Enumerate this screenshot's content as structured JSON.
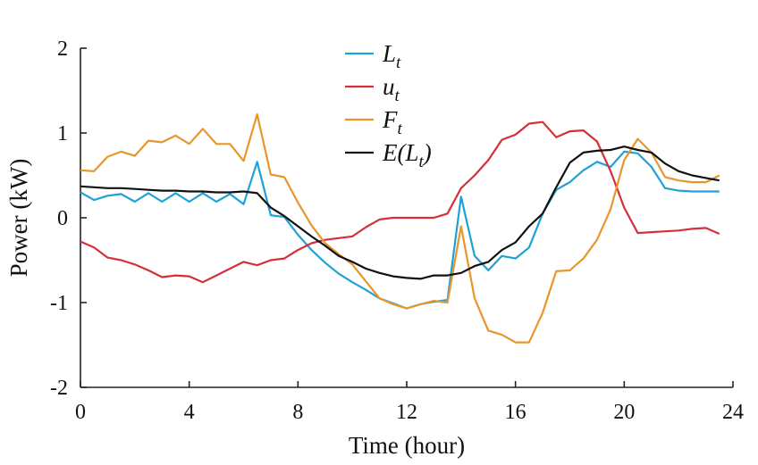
{
  "chart_data": {
    "type": "line",
    "xlabel": "Time (hour)",
    "ylabel": "Power (kW)",
    "xlim": [
      0,
      24
    ],
    "ylim": [
      -2,
      2
    ],
    "xticks": [
      0,
      4,
      8,
      12,
      16,
      20,
      24
    ],
    "yticks": [
      -2,
      -1,
      0,
      1,
      2
    ],
    "grid": false,
    "legend_position": "top-center",
    "series": [
      {
        "name": "L_t",
        "label_main": "L",
        "label_sub": "t",
        "color": "#1ea2d6",
        "x": [
          0,
          0.5,
          1,
          1.5,
          2,
          2.5,
          3,
          3.5,
          4,
          4.5,
          5,
          5.5,
          6,
          6.5,
          7,
          7.5,
          8,
          8.5,
          9,
          9.5,
          10,
          10.5,
          11,
          11.5,
          12,
          12.5,
          13,
          13.5,
          14,
          14.5,
          15,
          15.5,
          16,
          16.5,
          17,
          17.5,
          18,
          18.5,
          19,
          19.5,
          20,
          20.5,
          21,
          21.5,
          22,
          22.5,
          23,
          23.5
        ],
        "y": [
          0.3,
          0.21,
          0.26,
          0.28,
          0.19,
          0.29,
          0.19,
          0.29,
          0.19,
          0.29,
          0.19,
          0.28,
          0.16,
          0.66,
          0.03,
          0.01,
          -0.2,
          -0.38,
          -0.53,
          -0.66,
          -0.76,
          -0.85,
          -0.95,
          -1.01,
          -1.07,
          -1.02,
          -0.99,
          -0.97,
          0.25,
          -0.45,
          -0.62,
          -0.45,
          -0.48,
          -0.35,
          0.05,
          0.33,
          0.42,
          0.56,
          0.66,
          0.6,
          0.78,
          0.76,
          0.6,
          0.35,
          0.32,
          0.31,
          0.31,
          0.31
        ]
      },
      {
        "name": "u_t",
        "label_main": "u",
        "label_sub": "t",
        "color": "#d62f3c",
        "x": [
          0,
          0.5,
          1,
          1.5,
          2,
          2.5,
          3,
          3.5,
          4,
          4.5,
          5,
          5.5,
          6,
          6.5,
          7,
          7.5,
          8,
          8.5,
          9,
          9.5,
          10,
          10.5,
          11,
          11.5,
          12,
          12.5,
          13,
          13.5,
          14,
          14.5,
          15,
          15.5,
          16,
          16.5,
          17,
          17.5,
          18,
          18.5,
          19,
          19.5,
          20,
          20.5,
          21,
          21.5,
          22,
          22.5,
          23,
          23.5
        ],
        "y": [
          -0.28,
          -0.35,
          -0.47,
          -0.5,
          -0.55,
          -0.62,
          -0.7,
          -0.68,
          -0.69,
          -0.76,
          -0.68,
          -0.6,
          -0.52,
          -0.56,
          -0.5,
          -0.48,
          -0.38,
          -0.3,
          -0.26,
          -0.24,
          -0.22,
          -0.11,
          -0.02,
          0.0,
          0.0,
          0.0,
          0.0,
          0.05,
          0.35,
          0.5,
          0.68,
          0.92,
          0.98,
          1.11,
          1.13,
          0.95,
          1.02,
          1.03,
          0.9,
          0.55,
          0.12,
          -0.18,
          -0.17,
          -0.16,
          -0.15,
          -0.13,
          -0.12,
          -0.19
        ]
      },
      {
        "name": "F_t",
        "label_main": "F",
        "label_sub": "t",
        "color": "#e8962b",
        "x": [
          0,
          0.5,
          1,
          1.5,
          2,
          2.5,
          3,
          3.5,
          4,
          4.5,
          5,
          5.5,
          6,
          6.5,
          7,
          7.5,
          8,
          8.5,
          9,
          9.5,
          10,
          10.5,
          11,
          11.5,
          12,
          12.5,
          13,
          13.5,
          14,
          14.5,
          15,
          15.5,
          16,
          16.5,
          17,
          17.5,
          18,
          18.5,
          19,
          19.5,
          20,
          20.5,
          21,
          21.5,
          22,
          22.5,
          23,
          23.5
        ],
        "y": [
          0.56,
          0.55,
          0.72,
          0.78,
          0.73,
          0.91,
          0.89,
          0.97,
          0.87,
          1.05,
          0.87,
          0.87,
          0.67,
          1.22,
          0.51,
          0.48,
          0.18,
          -0.09,
          -0.3,
          -0.43,
          -0.55,
          -0.75,
          -0.95,
          -1.02,
          -1.07,
          -1.02,
          -0.98,
          -1.0,
          -0.1,
          -0.95,
          -1.33,
          -1.38,
          -1.47,
          -1.47,
          -1.12,
          -0.63,
          -0.62,
          -0.48,
          -0.26,
          0.1,
          0.68,
          0.93,
          0.77,
          0.48,
          0.44,
          0.42,
          0.42,
          0.5
        ]
      },
      {
        "name": "E(L_t)",
        "label_main": "E(L",
        "label_sub": "t",
        "label_tail": ")",
        "color": "#111111",
        "x": [
          0,
          0.5,
          1,
          1.5,
          2,
          2.5,
          3,
          3.5,
          4,
          4.5,
          5,
          5.5,
          6,
          6.5,
          7,
          7.5,
          8,
          8.5,
          9,
          9.5,
          10,
          10.5,
          11,
          11.5,
          12,
          12.5,
          13,
          13.5,
          14,
          14.5,
          15,
          15.5,
          16,
          16.5,
          17,
          17.5,
          18,
          18.5,
          19,
          19.5,
          20,
          20.5,
          21,
          21.5,
          22,
          22.5,
          23,
          23.5
        ],
        "y": [
          0.37,
          0.36,
          0.35,
          0.35,
          0.34,
          0.33,
          0.32,
          0.32,
          0.31,
          0.31,
          0.3,
          0.3,
          0.31,
          0.29,
          0.12,
          0.02,
          -0.1,
          -0.22,
          -0.33,
          -0.45,
          -0.52,
          -0.6,
          -0.65,
          -0.69,
          -0.71,
          -0.72,
          -0.68,
          -0.68,
          -0.65,
          -0.57,
          -0.52,
          -0.38,
          -0.29,
          -0.1,
          0.05,
          0.36,
          0.65,
          0.77,
          0.79,
          0.8,
          0.84,
          0.8,
          0.77,
          0.64,
          0.55,
          0.5,
          0.47,
          0.44
        ]
      }
    ]
  }
}
